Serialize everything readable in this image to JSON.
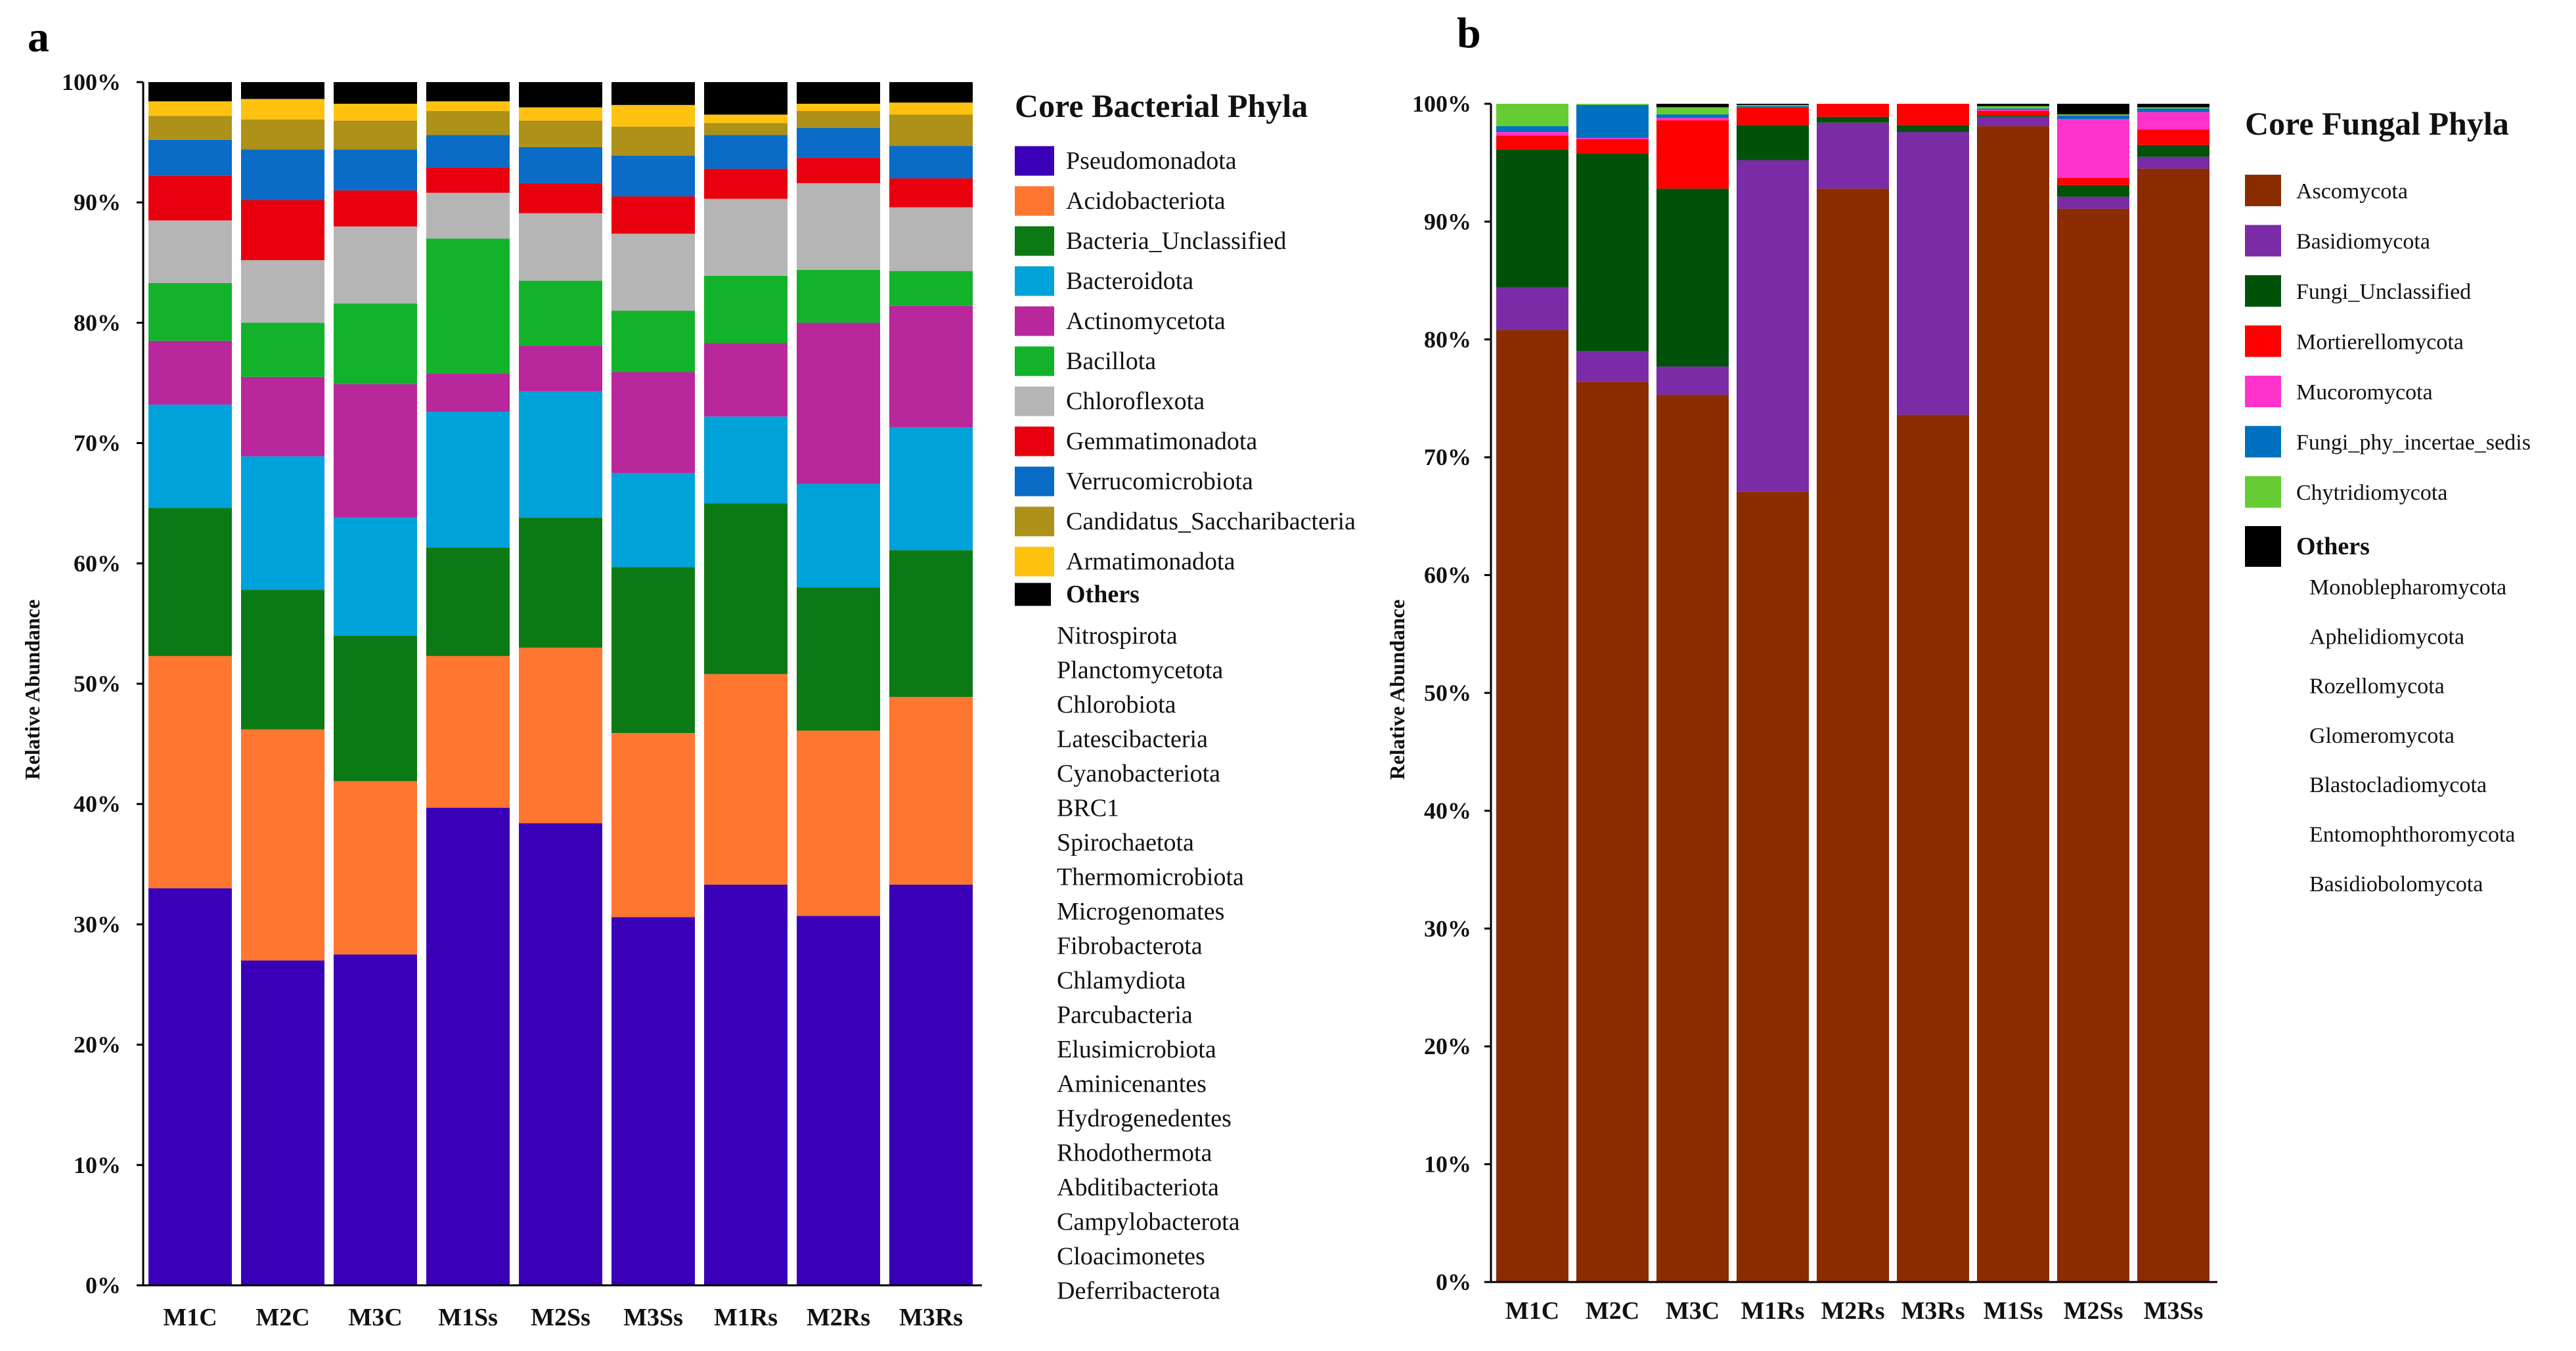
{
  "chart_data": [
    {
      "panel_label": "a",
      "type": "bar",
      "stacked": true,
      "ylabel": "Relative Abundance",
      "ylim": [
        0,
        100
      ],
      "yticks": [
        "0%",
        "10%",
        "20%",
        "30%",
        "40%",
        "50%",
        "60%",
        "70%",
        "80%",
        "90%",
        "100%"
      ],
      "categories": [
        "M1C",
        "M2C",
        "M3C",
        "M1Ss",
        "M2Ss",
        "M3Ss",
        "M1Rs",
        "M2Rs",
        "M3Rs"
      ],
      "legend_title": "Core Bacterial Phyla",
      "series": [
        {
          "name": "Pseudomonadota",
          "color": "#3A00B8",
          "values": [
            33,
            27,
            27.5,
            39.7,
            38.4,
            30.6,
            33.3,
            30.7,
            33.3
          ]
        },
        {
          "name": "Acidobacteriota",
          "color": "#FF7630",
          "values": [
            19.3,
            19.2,
            14.4,
            12.6,
            14.6,
            15.3,
            17.5,
            15.4,
            15.6
          ]
        },
        {
          "name": "Bacteria_Unclassified",
          "color": "#0C7A14",
          "values": [
            12.3,
            11.6,
            12.1,
            9,
            10.8,
            13.8,
            14.2,
            11.9,
            12.2
          ]
        },
        {
          "name": "Bacteroidota",
          "color": "#00A2DA",
          "values": [
            8.6,
            11.1,
            9.8,
            11.3,
            10.5,
            7.8,
            7.2,
            8.6,
            10.2
          ]
        },
        {
          "name": "Actinomycetota",
          "color": "#B8279B",
          "values": [
            5.3,
            6.6,
            11.1,
            3.2,
            3.8,
            8.4,
            6.1,
            13.4,
            10.1
          ]
        },
        {
          "name": "Bacillota",
          "color": "#12B22B",
          "values": [
            4.8,
            4.5,
            6.7,
            11.2,
            5.4,
            5.1,
            5.6,
            4.4,
            2.9
          ]
        },
        {
          "name": "Chloroflexota",
          "color": "#B5B5B5",
          "values": [
            5.2,
            5.2,
            6.4,
            3.8,
            5.6,
            6.4,
            6.4,
            7.2,
            5.3
          ]
        },
        {
          "name": "Gemmatimonadota",
          "color": "#E8000E",
          "values": [
            3.7,
            5,
            3,
            2.1,
            2.5,
            3.1,
            2.5,
            2.1,
            2.4
          ]
        },
        {
          "name": "Verrucomicrobiota",
          "color": "#0A6CC6",
          "values": [
            3,
            4.2,
            3.4,
            2.7,
            3,
            3.4,
            2.8,
            2.5,
            2.7
          ]
        },
        {
          "name": "Candidatus_Saccharibacteria",
          "color": "#AD9119",
          "values": [
            2,
            2.5,
            2.4,
            2,
            2.2,
            2.4,
            1,
            1.4,
            2.6
          ]
        },
        {
          "name": "Armatimonadota",
          "color": "#FFC20E",
          "values": [
            1.2,
            1.7,
            1.4,
            0.8,
            1.1,
            1.8,
            0.7,
            0.6,
            1
          ]
        },
        {
          "name": "Others",
          "color": "#000000",
          "values": [
            1.6,
            1.4,
            1.8,
            1.6,
            2.1,
            1.9,
            2.7,
            1.8,
            1.7
          ]
        }
      ],
      "others_members": [
        "Nitrospirota",
        "Planctomycetota",
        "Chlorobiota",
        "Latescibacteria",
        "Cyanobacteriota",
        "BRC1",
        "Spirochaetota",
        "Thermomicrobiota",
        "Microgenomates",
        "Fibrobacterota",
        "Chlamydiota",
        "Parcubacteria",
        "Elusimicrobiota",
        "Aminicenantes",
        "Hydrogenedentes",
        "Rhodothermota",
        "Abditibacteriota",
        "Campylobacterota",
        "Cloacimonetes",
        "Deferribacterota"
      ]
    },
    {
      "panel_label": "b",
      "type": "bar",
      "stacked": true,
      "ylabel": "Relative Abundance",
      "ylim": [
        0,
        100
      ],
      "yticks": [
        "0%",
        "10%",
        "20%",
        "30%",
        "40%",
        "50%",
        "60%",
        "70%",
        "80%",
        "90%",
        "100%"
      ],
      "categories": [
        "M1C",
        "M2C",
        "M3C",
        "M1Rs",
        "M2Rs",
        "M3Rs",
        "M1Ss",
        "M2Ss",
        "M3Ss"
      ],
      "legend_title": "Core Fungal Phyla",
      "series": [
        {
          "name": "Ascomycota",
          "color": "#8B2C00",
          "values": [
            80.8,
            76.4,
            75.3,
            67.2,
            92.8,
            73.6,
            98.1,
            91.1,
            94.5
          ]
        },
        {
          "name": "Basidiomycota",
          "color": "#7B2BA6",
          "values": [
            3.6,
            2.6,
            2.4,
            28.2,
            5.6,
            24,
            0.8,
            1,
            1
          ]
        },
        {
          "name": "Fungi_Unclassified",
          "color": "#00520B",
          "values": [
            11.7,
            16.8,
            15.1,
            3,
            0.5,
            0.6,
            0.1,
            1,
            1
          ]
        },
        {
          "name": "Mortierellomycota",
          "color": "#FF0000",
          "values": [
            1.2,
            1.2,
            5.8,
            1.5,
            1.1,
            1.8,
            0.4,
            0.6,
            1.3
          ]
        },
        {
          "name": "Mucoromycota",
          "color": "#FF33CC",
          "values": [
            0.3,
            0.1,
            0.2,
            0,
            0,
            0,
            0.1,
            5,
            1.5
          ]
        },
        {
          "name": "Fungi_phy_incertae_sedis",
          "color": "#0070C0",
          "values": [
            0.5,
            2.8,
            0.3,
            0.1,
            0,
            0,
            0.1,
            0.3,
            0.3
          ]
        },
        {
          "name": "Chytridiomycota",
          "color": "#66CC33",
          "values": [
            1.9,
            0.1,
            0.6,
            0.1,
            0,
            0,
            0.2,
            0.1,
            0.1
          ]
        },
        {
          "name": "Others",
          "color": "#000000",
          "values": [
            0,
            0,
            0.3,
            0.1,
            0,
            0,
            0.2,
            0.9,
            0.3
          ]
        }
      ],
      "others_members": [
        "Monoblepharomycota",
        "Aphelidiomycota",
        "Rozellomycota",
        "Glomeromycota",
        "Blastocladiomycota",
        "Entomophthoromycota",
        "Basidiobolomycota"
      ]
    }
  ]
}
